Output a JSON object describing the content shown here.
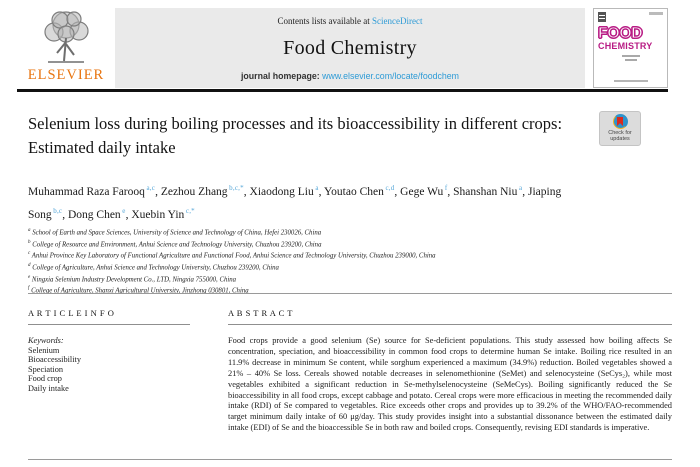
{
  "colors": {
    "link_blue": "#2e9bd6",
    "superscript_blue": "#56a7d8",
    "elsevier_orange": "#e87511",
    "cover_magenta": "#b81b84",
    "header_box_gray": "#eaeaea"
  },
  "header": {
    "contents_prefix": "Contents lists available at ",
    "contents_link": "ScienceDirect",
    "journal_title": "Food Chemistry",
    "homepage_prefix": "journal homepage: ",
    "homepage_url": "www.elsevier.com/locate/foodchem",
    "publisher": "ELSEVIER",
    "cover": {
      "line1": "FOOD",
      "line2": "CHEMISTRY"
    }
  },
  "badge": {
    "line1": "Check for",
    "line2": "updates"
  },
  "article": {
    "title": "Selenium loss during boiling processes and its bioaccessibility in different crops: Estimated daily intake",
    "authors": [
      {
        "name": "Muhammad Raza Farooq",
        "sup": "a,c"
      },
      {
        "name": "Zezhou Zhang",
        "sup": "b,c,*"
      },
      {
        "name": "Xiaodong Liu",
        "sup": "a"
      },
      {
        "name": "Youtao Chen",
        "sup": "c,d"
      },
      {
        "name": "Gege Wu",
        "sup": "f"
      },
      {
        "name": "Shanshan Niu",
        "sup": "a"
      },
      {
        "name": "Jiaping Song",
        "sup": "b,c"
      },
      {
        "name": "Dong Chen",
        "sup": "e"
      },
      {
        "name": "Xuebin Yin",
        "sup": "c,*"
      }
    ],
    "affiliations": [
      {
        "sup": "a",
        "text": "School of Earth and Space Sciences, University of Science and Technology of China, Hefei 230026, China"
      },
      {
        "sup": "b",
        "text": "College of Resource and Environment, Anhui Science and Technology University, Chuzhou 239200, China"
      },
      {
        "sup": "c",
        "text": "Anhui Province Key Laboratory of Functional Agriculture and Functional Food, Anhui Science and Technology University, Chuzhou 239000, China"
      },
      {
        "sup": "d",
        "text": "College of Agriculture, Anhui Science and Technology University, Chuzhou 239200, China"
      },
      {
        "sup": "e",
        "text": "Ningxia Selenium Industry Development Co., LTD, Ningxia 755000, China"
      },
      {
        "sup": "f",
        "text": "College of Agriculture, Shanxi Agricultural University, Jinzhong 030801, China"
      }
    ]
  },
  "sections": {
    "article_info_heading": "A R T I C L E  I N F O",
    "abstract_heading": "A B S T R A C T",
    "keywords_label": "Keywords:",
    "keywords": [
      "Selenium",
      "Bioaccessibility",
      "Speciation",
      "Food crop",
      "Daily intake"
    ],
    "abstract_text": "Food crops provide a good selenium (Se) source for Se-deficient populations. This study assessed how boiling affects Se concentration, speciation, and bioaccessibility in common food crops to determine human Se intake. Boiling rice resulted in an 11.9% decrease in minimum Se content, while sorghum experienced a maximum (34.9%) reduction. Boiled vegetables showed a 21% – 40% Se loss. Cereals showed notable decreases in selenomethionine (SeMet) and selenocysteine (SeCys₂), while most vegetables exhibited a significant reduction in Se-methylselenocysteine (SeMeCys). Boiling significantly reduced the Se bioaccessibility in all food crops, except cabbage and potato. Cereal crops were more efficacious in meeting the recommended daily intake (RDI) of Se compared to vegetables. Rice exceeds other crops and provides up to 39.2% of the WHO/FAO-recommended target minimum daily intake of 60 μg/day. This study provides insight into a substantial dissonance between the estimated daily intake (EDI) of Se and the bioaccessible Se in both raw and boiled crops. Consequently, revising EDI standards is imperative."
  }
}
